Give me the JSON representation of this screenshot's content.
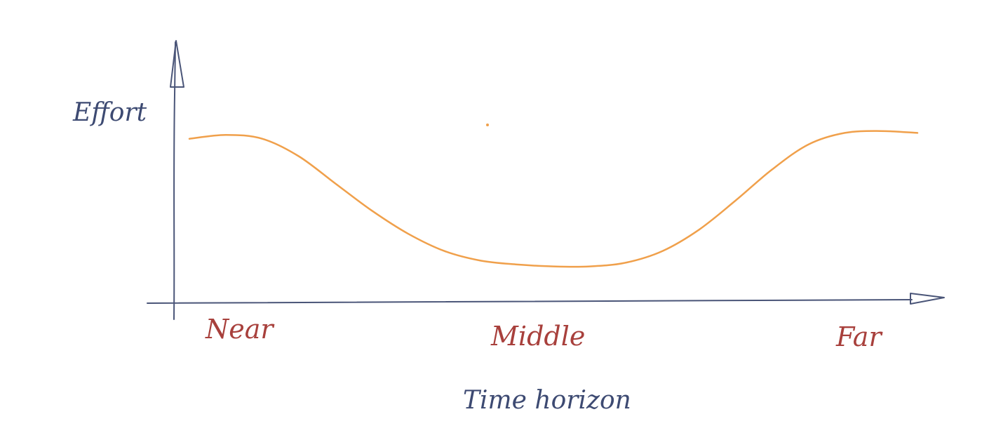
{
  "chart_data": {
    "type": "line",
    "title": "",
    "xlabel": "Time horizon",
    "ylabel": "Effort",
    "categories": [
      "Near",
      "Middle",
      "Far"
    ],
    "x": [
      0,
      0.05,
      0.1,
      0.15,
      0.2,
      0.25,
      0.3,
      0.35,
      0.4,
      0.45,
      0.5,
      0.55,
      0.6,
      0.65,
      0.7,
      0.75,
      0.8,
      0.85,
      0.9,
      0.95,
      1.0
    ],
    "series": [
      {
        "values": [
          0.85,
          0.87,
          0.85,
          0.76,
          0.62,
          0.48,
          0.36,
          0.27,
          0.22,
          0.2,
          0.19,
          0.19,
          0.21,
          0.27,
          0.38,
          0.53,
          0.69,
          0.82,
          0.88,
          0.89,
          0.88
        ]
      }
    ],
    "xlim": [
      0,
      1
    ],
    "ylim": [
      0,
      1.15
    ],
    "grid": false,
    "colors": {
      "axis": "#4a5578",
      "curve": "#f0a04b",
      "category_labels": "#a8403c",
      "axis_labels": "#3d4a72"
    }
  }
}
